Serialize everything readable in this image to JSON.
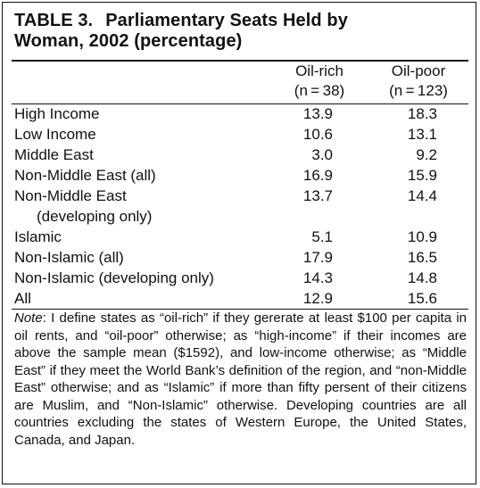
{
  "table": {
    "number": "TABLE 3.",
    "title_line1": "Parliamentary Seats Held by",
    "title_line2": "Woman, 2002 (percentage)",
    "columns": [
      {
        "name": "Oil-rich",
        "n": "(n = 38)"
      },
      {
        "name": "Oil-poor",
        "n": "(n = 123)"
      }
    ],
    "rows": [
      {
        "label": "High Income",
        "label2": "",
        "oil_rich": "13.9",
        "oil_poor": "18.3"
      },
      {
        "label": "Low Income",
        "label2": "",
        "oil_rich": "10.6",
        "oil_poor": "13.1"
      },
      {
        "label": "Middle East",
        "label2": "",
        "oil_rich": "3.0",
        "oil_poor": "9.2"
      },
      {
        "label": "Non-Middle East (all)",
        "label2": "",
        "oil_rich": "16.9",
        "oil_poor": "15.9"
      },
      {
        "label": "Non-Middle East",
        "label2": "(developing only)",
        "oil_rich": "13.7",
        "oil_poor": "14.4"
      },
      {
        "label": "Islamic",
        "label2": "",
        "oil_rich": "5.1",
        "oil_poor": "10.9"
      },
      {
        "label": "Non-Islamic (all)",
        "label2": "",
        "oil_rich": "17.9",
        "oil_poor": "16.5"
      },
      {
        "label": "Non-Islamic (developing only)",
        "label2": "",
        "oil_rich": "14.3",
        "oil_poor": "14.8"
      },
      {
        "label": "All",
        "label2": "",
        "oil_rich": "12.9",
        "oil_poor": "15.6"
      }
    ],
    "note_label": "Note",
    "note_text": ": I define states as “oil-rich” if they gererate at least $100 per capita in oil rents, and “oil-poor” otherwise; as “high-income” if their incomes are above the sample mean ($1592), and low-income otherwise; as “Middle East” if they meet the World Bank’s definition of the region, and “non-Middle East” otherwise; and as “Islamic” if more than fifty persent of their citizens are Muslim, and “Non-Islamic” otherwise. Developing countries are all countries excluding the states of Western Europe, the United States, Canada, and Japan."
  }
}
